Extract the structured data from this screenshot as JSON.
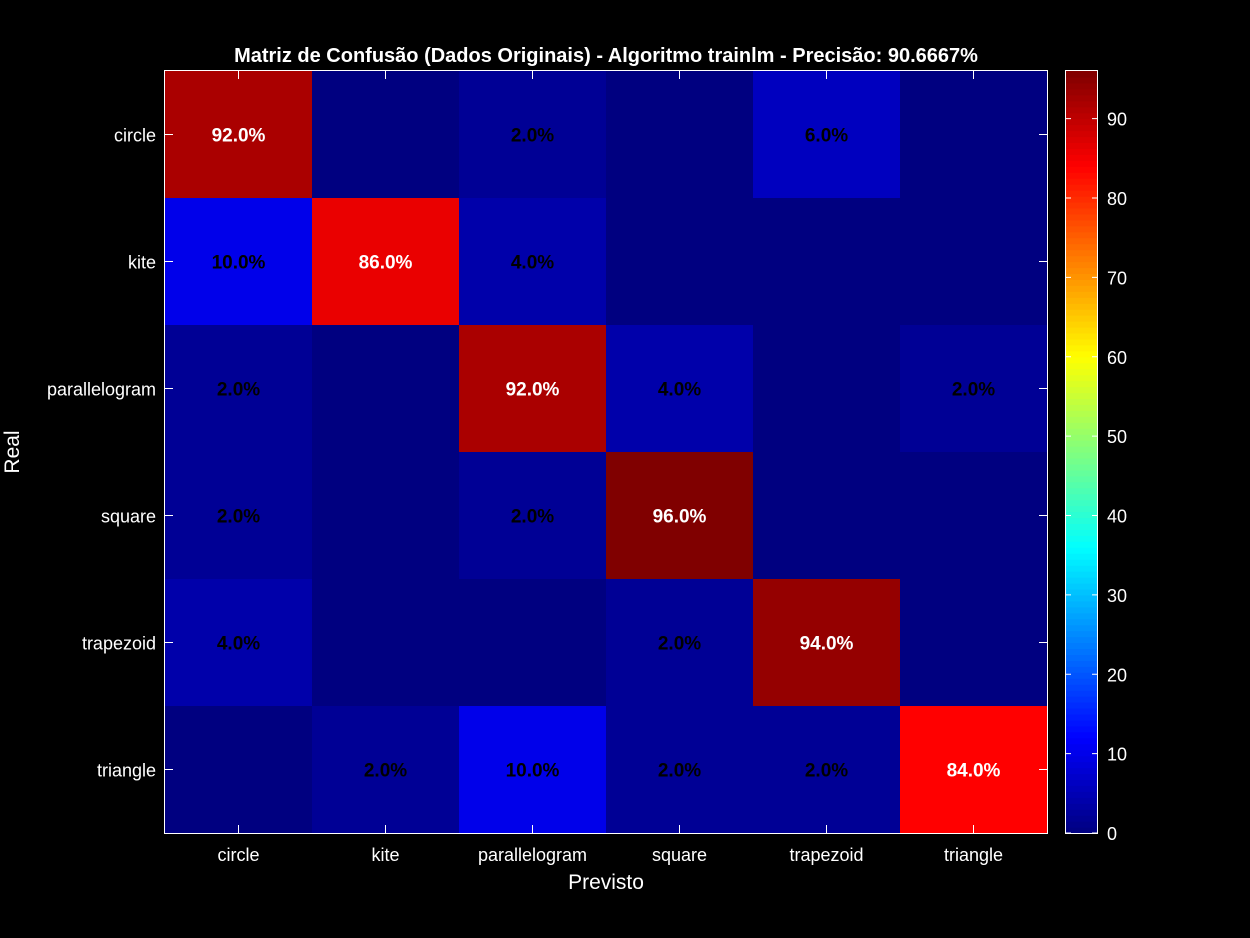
{
  "chart_data": {
    "type": "heatmap",
    "title": "Matriz de Confusão (Dados Originais) - Algoritmo trainlm - Precisão: 90.6667%",
    "xlabel": "Previsto",
    "ylabel": "Real",
    "x_categories": [
      "circle",
      "kite",
      "parallelogram",
      "square",
      "trapezoid",
      "triangle"
    ],
    "y_categories": [
      "circle",
      "kite",
      "parallelogram",
      "square",
      "trapezoid",
      "triangle"
    ],
    "values": [
      [
        92,
        0,
        2,
        0,
        6,
        0
      ],
      [
        10,
        86,
        4,
        0,
        0,
        0
      ],
      [
        2,
        0,
        92,
        4,
        0,
        2
      ],
      [
        2,
        0,
        2,
        96,
        0,
        0
      ],
      [
        4,
        0,
        0,
        2,
        94,
        0
      ],
      [
        0,
        2,
        10,
        2,
        2,
        84
      ]
    ],
    "cell_labels": [
      [
        "92.0%",
        "",
        "2.0%",
        "",
        "6.0%",
        ""
      ],
      [
        "10.0%",
        "86.0%",
        "4.0%",
        "",
        "",
        ""
      ],
      [
        "2.0%",
        "",
        "92.0%",
        "4.0%",
        "",
        "2.0%"
      ],
      [
        "2.0%",
        "",
        "2.0%",
        "96.0%",
        "",
        ""
      ],
      [
        "4.0%",
        "",
        "",
        "2.0%",
        "94.0%",
        ""
      ],
      [
        "",
        "2.0%",
        "10.0%",
        "2.0%",
        "2.0%",
        "84.0%"
      ]
    ],
    "colormap": "jet",
    "color_range": [
      0,
      96
    ],
    "colorbar_ticks": [
      0,
      10,
      20,
      30,
      40,
      50,
      60,
      70,
      80,
      90
    ],
    "grid": false,
    "background_color": "#000000",
    "foreground_color": "#ffffff"
  }
}
